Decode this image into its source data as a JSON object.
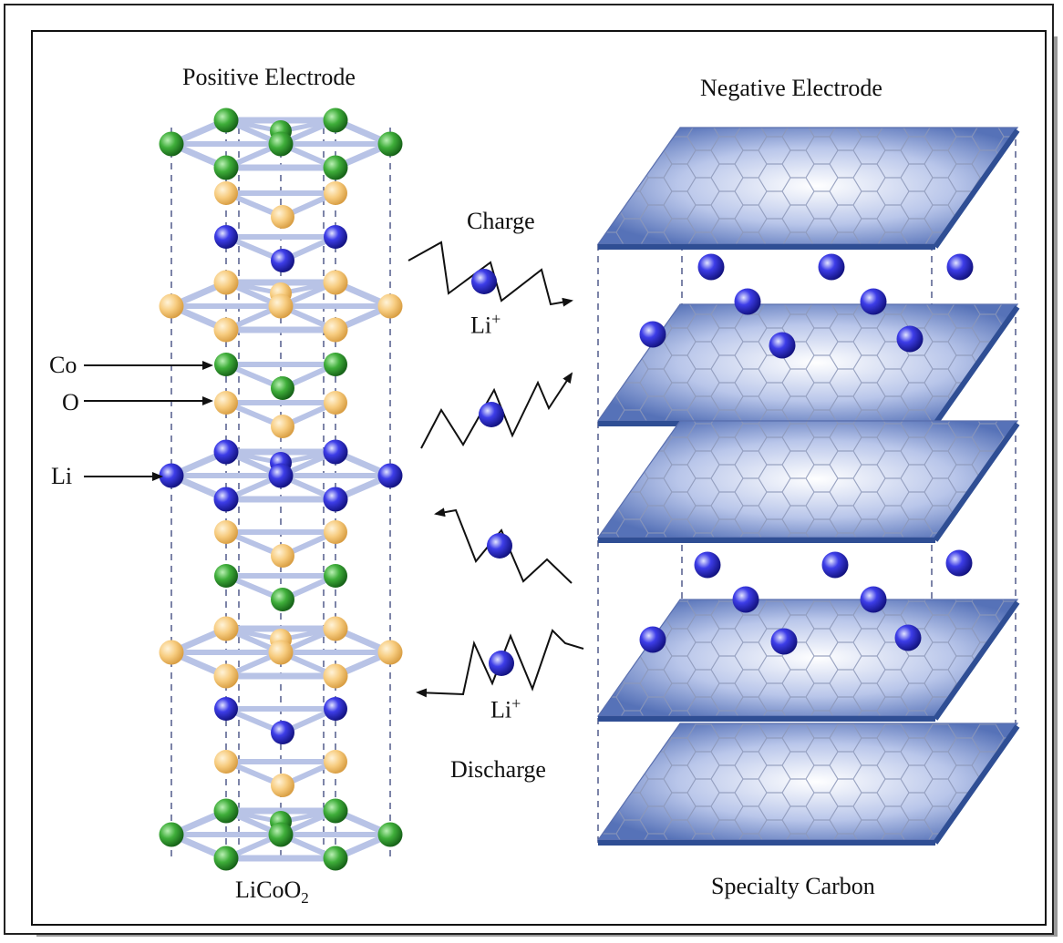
{
  "labels": {
    "positive_electrode": "Positive Electrode",
    "negative_electrode": "Negative Electrode",
    "charge": "Charge",
    "discharge": "Discharge",
    "li_ion": "Li",
    "li_ion_charge": "+",
    "cathode_formula_a": "LiCoO",
    "cathode_formula_sub": "2",
    "anode_material": "Specialty Carbon",
    "atom_co": "Co",
    "atom_o": "O",
    "atom_li": "Li"
  },
  "colors": {
    "cobalt": "#2f9a2f",
    "oxygen": "#f5c16c",
    "lithium": "#2b2bd8",
    "bond": "#b8c3e6",
    "graphene_edge": "#2f4e94",
    "graphene_face": "#6d88c8"
  }
}
